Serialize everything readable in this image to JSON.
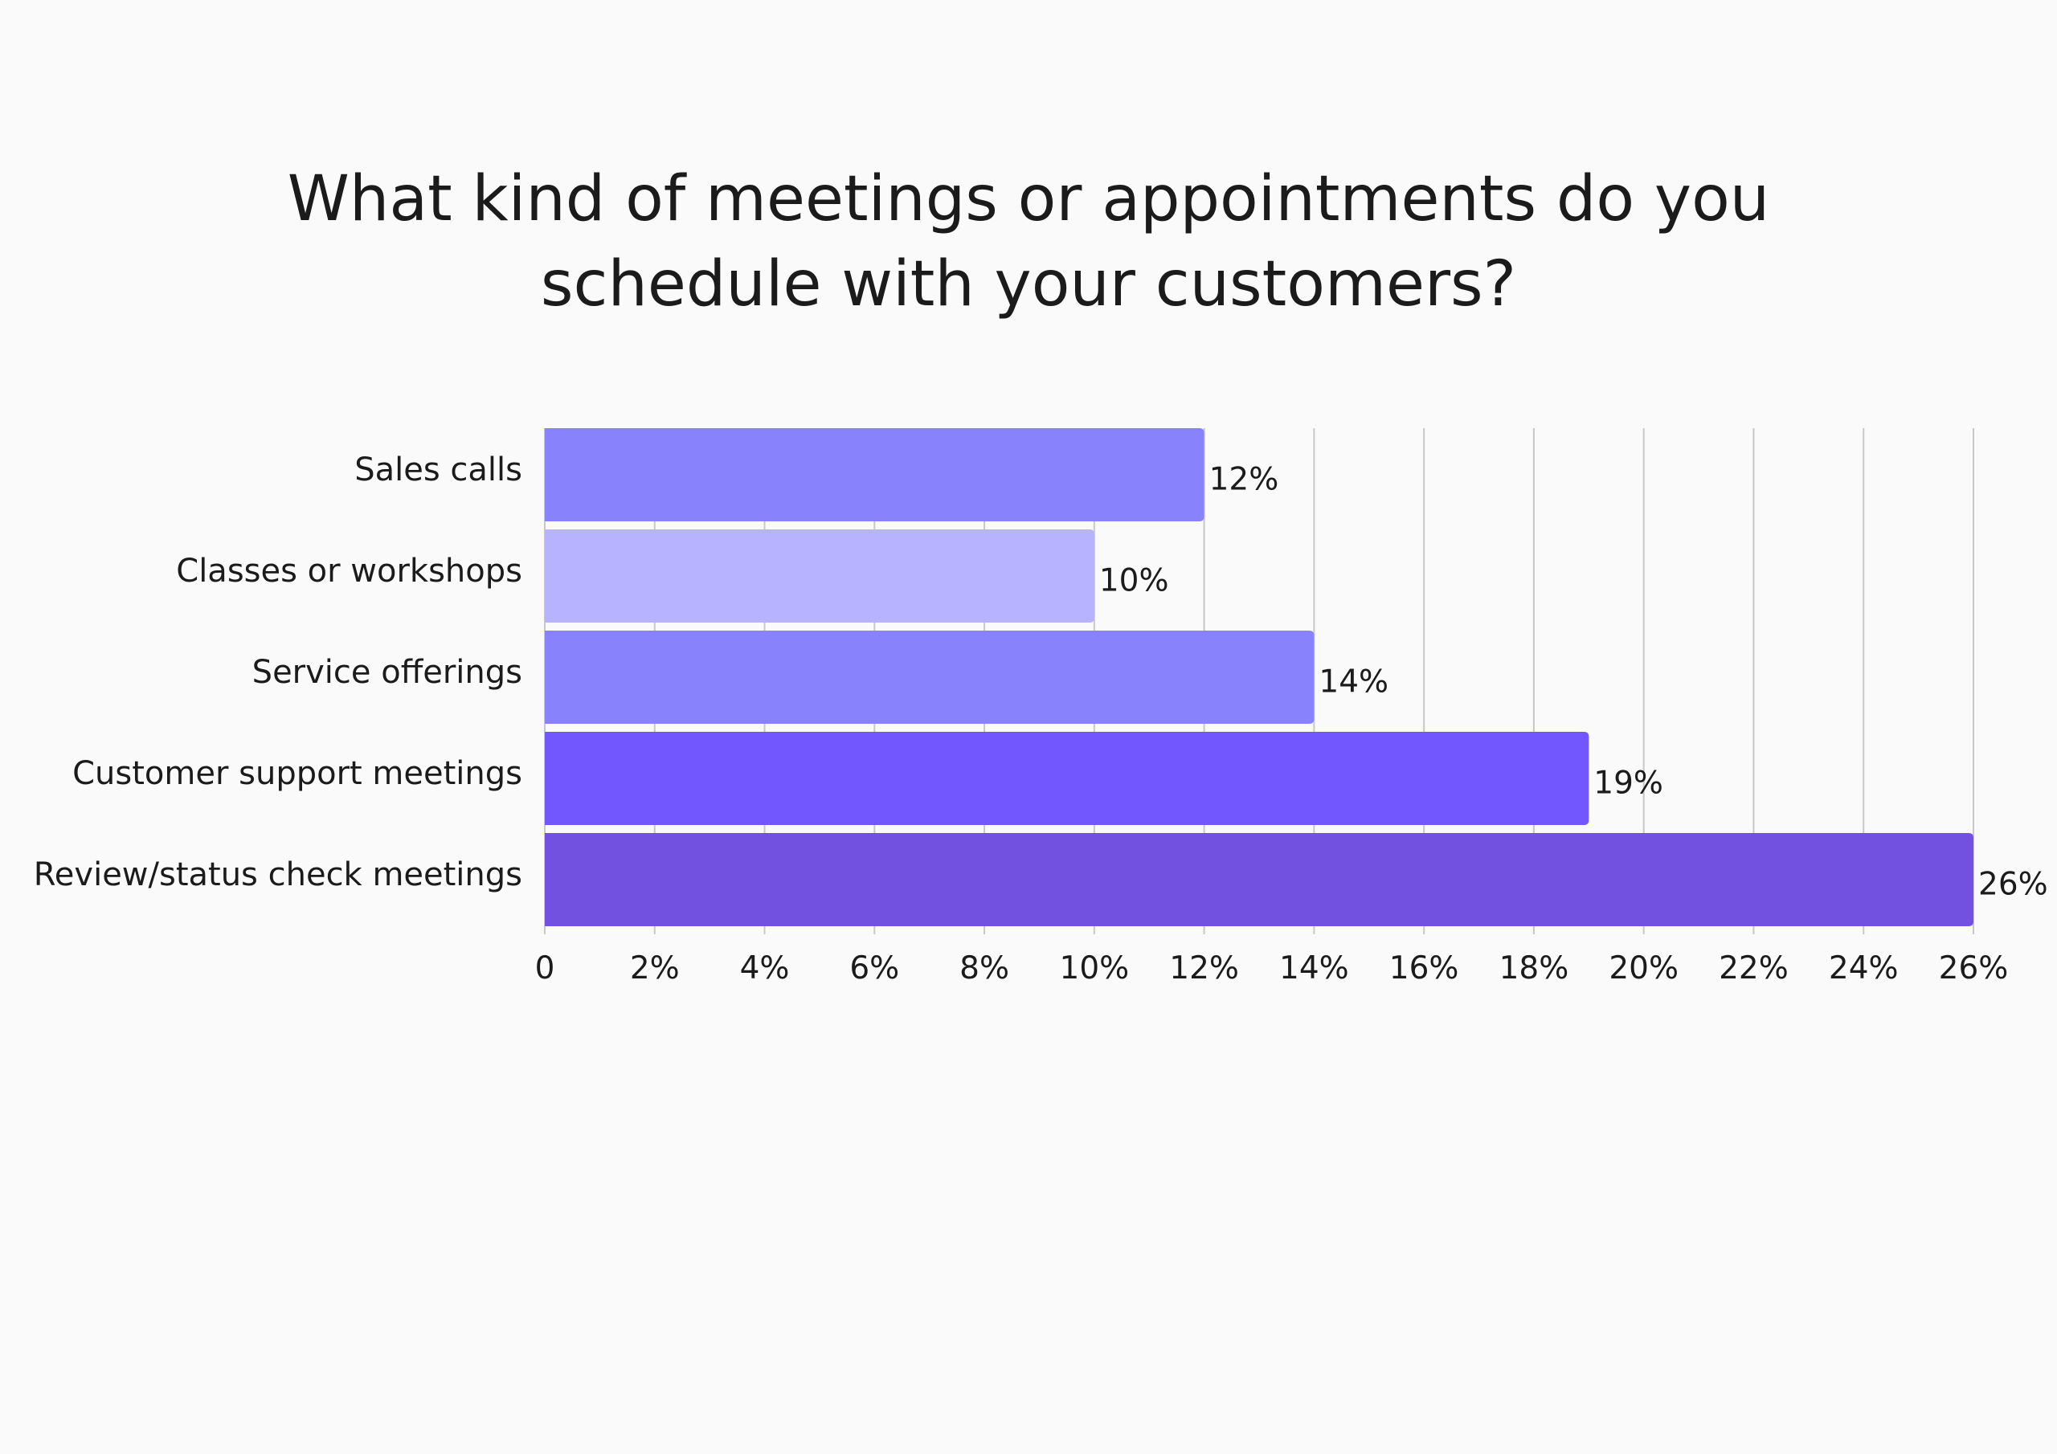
{
  "chart_data": {
    "type": "bar",
    "orientation": "horizontal",
    "title_lines": [
      "What kind of meetings or appointments do you",
      "schedule with your customers?"
    ],
    "categories": [
      "Sales calls",
      "Classes or workshops",
      "Service offerings",
      "Customer support meetings",
      "Review/status check meetings"
    ],
    "values": [
      12,
      10,
      14,
      19,
      26
    ],
    "data_labels": [
      "12%",
      "10%",
      "14%",
      "19%",
      "26%"
    ],
    "bar_colors": [
      "#8882fd",
      "#b7b3fe",
      "#8882fd",
      "#7257fe",
      "#7351e0"
    ],
    "xlim": [
      0,
      26
    ],
    "x_ticks": [
      0,
      2,
      4,
      6,
      8,
      10,
      12,
      14,
      16,
      18,
      20,
      22,
      24,
      26
    ],
    "x_tick_labels": [
      "0",
      "2%",
      "4%",
      "6%",
      "8%",
      "10%",
      "12%",
      "14%",
      "16%",
      "18%",
      "20%",
      "22%",
      "24%",
      "26%"
    ],
    "grid": true,
    "grid_color": "#c8c8c8",
    "legend": "none"
  }
}
